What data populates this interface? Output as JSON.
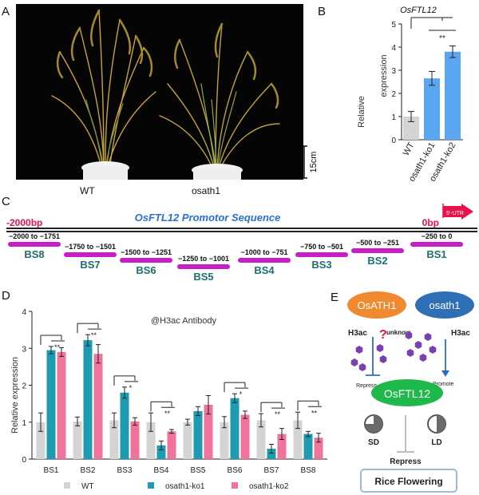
{
  "panelA": {
    "letter": "A",
    "labels": [
      "WT",
      "osath1"
    ],
    "scale_bar": "15cm"
  },
  "panelB": {
    "letter": "B",
    "title": "OsFTL12",
    "ylabel_line1": "Relative",
    "ylabel_line2": "expression",
    "yticks": [
      "0",
      "1",
      "2",
      "3",
      "4",
      "5"
    ],
    "sig": "**",
    "colors": {
      "wt": "#d4d4d4",
      "ko": "#5aa6f2"
    }
  },
  "panelC": {
    "letter": "C",
    "title": "OsFTL12 Promotor Sequence",
    "start_label": "-2000bp",
    "end_label": "0bp",
    "utr_label": "5'-UTR",
    "sites": [
      {
        "range": "−2000 to −1751",
        "name": "BS8"
      },
      {
        "range": "−1750 to −1501",
        "name": "BS7"
      },
      {
        "range": "−1500 to −1251",
        "name": "BS6"
      },
      {
        "range": "−1250 to −1001",
        "name": "BS5"
      },
      {
        "range": "−1000 to −751",
        "name": "BS4"
      },
      {
        "range": "−750 to −501",
        "name": "BS3"
      },
      {
        "range": "−500 to −251",
        "name": "BS2"
      },
      {
        "range": "−250 to 0",
        "name": "BS1"
      }
    ],
    "colors": {
      "bar": "#c81ec8",
      "title": "#2a6fd6",
      "label": "#1e6e6e",
      "red": "#e8124a"
    }
  },
  "panelD": {
    "letter": "D",
    "antibody": "@H3ac Antibody",
    "ylabel": "Relative  expression",
    "yticks": [
      "0",
      "1",
      "2",
      "3",
      "4"
    ],
    "legend": [
      "WT",
      "osath1-ko1",
      "osath1-ko2"
    ],
    "sig_labels": [
      "**",
      "**",
      "*",
      "**",
      "*",
      "**",
      "**"
    ],
    "colors": {
      "wt": "#d4d4d4",
      "ko1": "#1e9bb0",
      "ko2": "#f0739b"
    }
  },
  "panelE": {
    "letter": "E",
    "osath1_big": "OsATH1",
    "osath1_small": "osath1",
    "h3ac_left": "H3ac",
    "h3ac_right": "H3ac",
    "question": "?",
    "unknow": "unknow",
    "repress_small": "Repress",
    "promote": "Promote",
    "target": "OsFTL12",
    "sd": "SD",
    "ld": "LD",
    "repress_big": "Repress",
    "output": "Rice Flowering",
    "colors": {
      "orange": "#f08a2e",
      "blue": "#2f6fb6",
      "green": "#1fb84a",
      "purple": "#7a3fb0"
    }
  },
  "chart_data": [
    {
      "type": "bar",
      "title": "OsFTL12",
      "categories": [
        "WT",
        "osath1-ko1",
        "osath1-ko2"
      ],
      "values": [
        1.0,
        2.65,
        3.8
      ],
      "errors": [
        0.22,
        0.3,
        0.25
      ],
      "ylabel": "Relative expression",
      "ylim": [
        0,
        5
      ],
      "annotation": "**"
    },
    {
      "type": "bar",
      "title": "@H3ac Antibody",
      "categories": [
        "BS1",
        "BS2",
        "BS3",
        "BS4",
        "BS5",
        "BS6",
        "BS7",
        "BS8"
      ],
      "series": [
        {
          "name": "WT",
          "values": [
            1.0,
            1.02,
            1.05,
            1.0,
            1.0,
            1.0,
            1.05,
            1.05
          ],
          "errors": [
            0.25,
            0.12,
            0.2,
            0.25,
            0.08,
            0.15,
            0.18,
            0.22
          ]
        },
        {
          "name": "osath1-ko1",
          "values": [
            2.95,
            3.22,
            1.8,
            0.37,
            1.3,
            1.65,
            0.28,
            0.68
          ]
        },
        {
          "name": "osath1-ko2",
          "values": [
            2.9,
            2.85,
            1.02,
            0.75,
            1.47,
            1.2,
            0.68,
            0.58
          ]
        }
      ],
      "ko1_errors": [
        0.1,
        0.15,
        0.15,
        0.12,
        0.12,
        0.12,
        0.12,
        0.07
      ],
      "ko2_errors": [
        0.12,
        0.25,
        0.1,
        0.05,
        0.25,
        0.1,
        0.15,
        0.12
      ],
      "ylabel": "Relative expression",
      "ylim": [
        0,
        4
      ]
    }
  ]
}
